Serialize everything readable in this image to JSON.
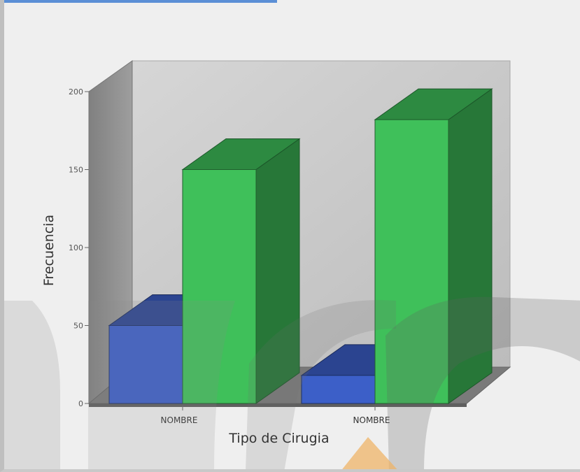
{
  "chart_data": {
    "type": "bar",
    "style": "3d-clustered-column",
    "title": "",
    "xlabel": "Tipo de Cirugia",
    "ylabel": "Frecuencia",
    "categories": [
      "NOMBRE",
      "NOMBRE"
    ],
    "series": [
      {
        "values": [
          50,
          18
        ],
        "color": "#3c5fc8"
      },
      {
        "values": [
          150,
          182
        ],
        "color": "#3fc05a"
      }
    ],
    "ylim": [
      0,
      200
    ],
    "yticks": [
      "0",
      "50",
      "100",
      "150",
      "200"
    ],
    "grid": false,
    "legend": "none"
  },
  "colors": {
    "background": "#efefef",
    "plot_back_wall": "#c8c8c8",
    "plot_side_wall": "#8e8e8e",
    "plot_floor": "#7a7a7a"
  }
}
